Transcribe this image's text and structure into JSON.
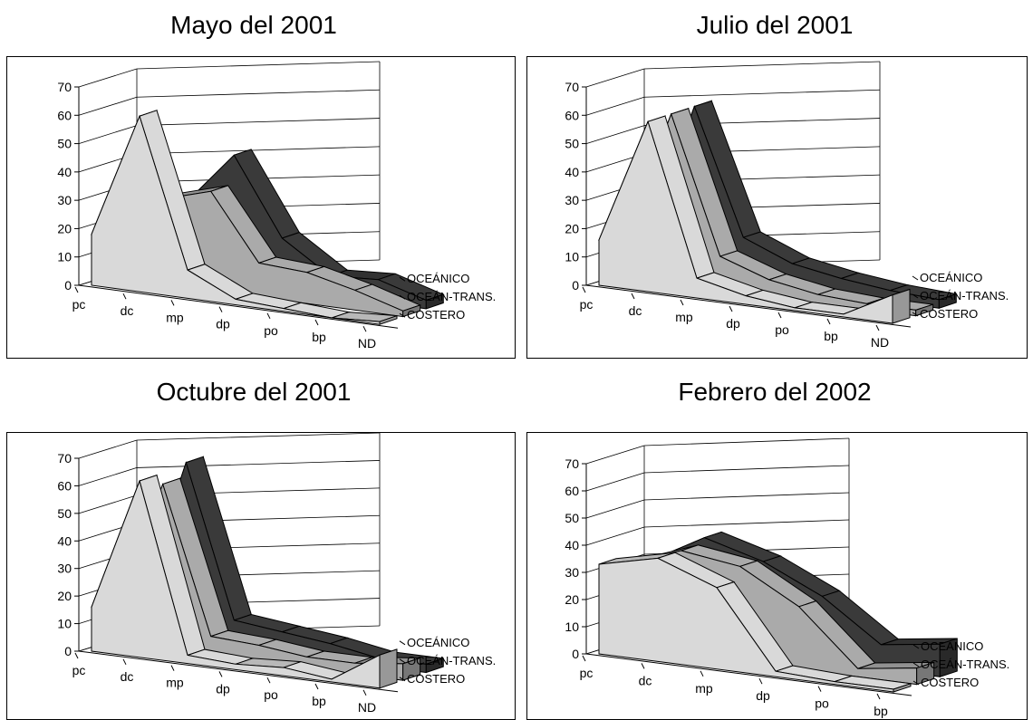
{
  "chart_data": [
    {
      "type": "area",
      "title": "Mayo del 2001",
      "categories": [
        "pc",
        "dc",
        "mp",
        "dp",
        "po",
        "bp",
        "ND"
      ],
      "y_ticks": [
        "0",
        "10",
        "20",
        "30",
        "40",
        "50",
        "60",
        "70"
      ],
      "ylim": [
        0,
        70
      ],
      "series": [
        {
          "name": "COSTERO",
          "color": "#d9d9d9",
          "values": [
            18,
            62,
            10,
            2,
            1,
            0,
            1
          ]
        },
        {
          "name": "OCEÁN-TRANS.",
          "color": "#aaaaaa",
          "values": [
            12,
            30,
            35,
            12,
            11,
            7,
            2
          ]
        },
        {
          "name": "OCEÁNICO",
          "color": "#3a3a3a",
          "values": [
            10,
            26,
            45,
            18,
            7,
            8,
            3
          ]
        }
      ]
    },
    {
      "type": "area",
      "title": "Julio del 2001",
      "categories": [
        "pc",
        "dc",
        "mp",
        "dp",
        "po",
        "bp",
        "ND"
      ],
      "y_ticks": [
        "0",
        "10",
        "20",
        "30",
        "40",
        "50",
        "60",
        "70"
      ],
      "ylim": [
        0,
        70
      ],
      "series": [
        {
          "name": "COSTERO",
          "color": "#d9d9d9",
          "values": [
            16,
            60,
            7,
            3,
            1,
            1,
            10
          ]
        },
        {
          "name": "OCEÁN-TRANS.",
          "color": "#aaaaaa",
          "values": [
            12,
            60,
            12,
            6,
            3,
            2,
            2
          ]
        },
        {
          "name": "OCEÁNICO",
          "color": "#3a3a3a",
          "values": [
            10,
            60,
            16,
            9,
            6,
            4,
            3
          ]
        }
      ]
    },
    {
      "type": "area",
      "title": "Octubre del 2001",
      "categories": [
        "pc",
        "dc",
        "mp",
        "dp",
        "po",
        "bp",
        "ND"
      ],
      "y_ticks": [
        "0",
        "10",
        "20",
        "30",
        "40",
        "50",
        "60",
        "70"
      ],
      "ylim": [
        0,
        70
      ],
      "series": [
        {
          "name": "COSTERO",
          "color": "#d9d9d9",
          "values": [
            16,
            64,
            3,
            2,
            3,
            1,
            12
          ]
        },
        {
          "name": "OCEÁN-TRANS.",
          "color": "#aaaaaa",
          "values": [
            12,
            60,
            7,
            6,
            4,
            4,
            6
          ]
        },
        {
          "name": "OCEÁNICO",
          "color": "#3a3a3a",
          "values": [
            10,
            65,
            10,
            8,
            6,
            3,
            3
          ]
        }
      ]
    },
    {
      "type": "area",
      "title": "Febrero del 2002",
      "categories": [
        "pc",
        "dc",
        "mp",
        "dp",
        "po",
        "bp"
      ],
      "y_ticks": [
        "0",
        "10",
        "20",
        "30",
        "40",
        "50",
        "60",
        "70"
      ],
      "ylim": [
        0,
        70
      ],
      "series": [
        {
          "name": "COSTERO",
          "color": "#d9d9d9",
          "values": [
            33,
            38,
            30,
            2,
            1,
            1
          ]
        },
        {
          "name": "OCEÁN-TRANS.",
          "color": "#aaaaaa",
          "values": [
            30,
            38,
            35,
            23,
            3,
            6
          ]
        },
        {
          "name": "OCEÁNICO",
          "color": "#3a3a3a",
          "values": [
            28,
            40,
            34,
            24,
            9,
            12
          ]
        }
      ]
    }
  ]
}
